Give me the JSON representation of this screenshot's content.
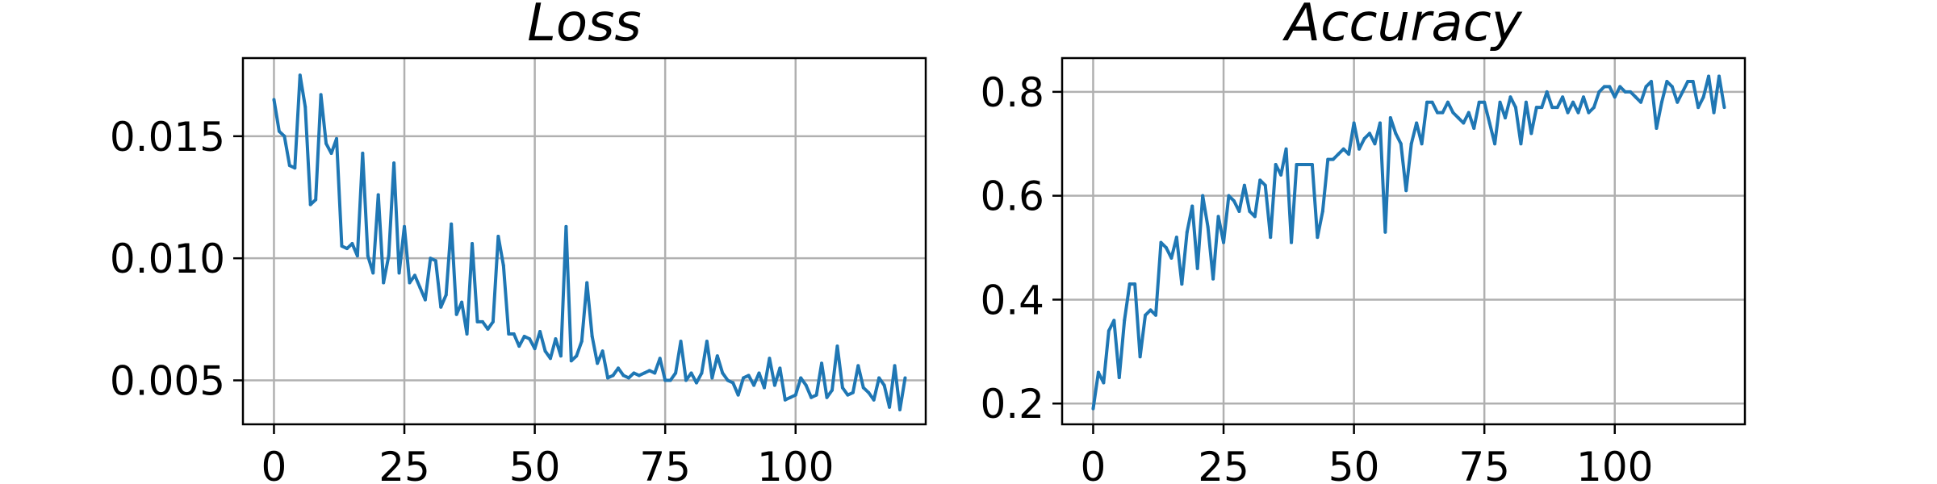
{
  "chart_data": [
    {
      "type": "line",
      "title": "Loss",
      "xlabel": "",
      "ylabel": "",
      "grid": true,
      "color": "#1f77b4",
      "xlim": [
        -5.95,
        124.95
      ],
      "ylim": [
        0.0032,
        0.0182
      ],
      "xticks": [
        0,
        25,
        50,
        75,
        100
      ],
      "yticks": [
        0.005,
        0.01,
        0.015
      ],
      "xtick_labels": [
        "0",
        "25",
        "50",
        "75",
        "100"
      ],
      "ytick_labels": [
        "0.005",
        "0.010",
        "0.015"
      ],
      "x_start": 0,
      "x_step": 1,
      "series": [
        {
          "values": [
            0.0165,
            0.0152,
            0.015,
            0.0138,
            0.0137,
            0.0175,
            0.0162,
            0.0122,
            0.0124,
            0.0167,
            0.0147,
            0.0143,
            0.0149,
            0.0105,
            0.0104,
            0.0106,
            0.0101,
            0.0143,
            0.0101,
            0.0094,
            0.0126,
            0.009,
            0.0101,
            0.0139,
            0.0094,
            0.0113,
            0.009,
            0.0093,
            0.0088,
            0.0083,
            0.01,
            0.0099,
            0.008,
            0.0085,
            0.0114,
            0.0077,
            0.0082,
            0.0069,
            0.0106,
            0.0074,
            0.0074,
            0.0071,
            0.0074,
            0.0109,
            0.0097,
            0.0069,
            0.0069,
            0.0064,
            0.0068,
            0.0067,
            0.0063,
            0.007,
            0.0062,
            0.0059,
            0.0067,
            0.006,
            0.0113,
            0.0058,
            0.006,
            0.0066,
            0.009,
            0.0068,
            0.0057,
            0.0062,
            0.0051,
            0.0052,
            0.0055,
            0.0052,
            0.0051,
            0.0053,
            0.0052,
            0.0053,
            0.0054,
            0.0053,
            0.0059,
            0.005,
            0.005,
            0.0053,
            0.0066,
            0.005,
            0.0053,
            0.0049,
            0.0053,
            0.0066,
            0.0051,
            0.006,
            0.0053,
            0.005,
            0.0049,
            0.0044,
            0.0051,
            0.0052,
            0.0048,
            0.0053,
            0.0047,
            0.0059,
            0.0048,
            0.0055,
            0.0042,
            0.0043,
            0.0044,
            0.0051,
            0.0048,
            0.0043,
            0.0044,
            0.0057,
            0.0043,
            0.0046,
            0.0064,
            0.0047,
            0.0044,
            0.0045,
            0.0056,
            0.0047,
            0.0045,
            0.0042,
            0.0051,
            0.0048,
            0.0039,
            0.0056,
            0.0038,
            0.0051
          ]
        }
      ]
    },
    {
      "type": "line",
      "title": "Accuracy",
      "xlabel": "",
      "ylabel": "",
      "grid": true,
      "color": "#1f77b4",
      "xlim": [
        -5.95,
        124.95
      ],
      "ylim": [
        0.16,
        0.865
      ],
      "xticks": [
        0,
        25,
        50,
        75,
        100
      ],
      "yticks": [
        0.2,
        0.4,
        0.6,
        0.8
      ],
      "xtick_labels": [
        "0",
        "25",
        "50",
        "75",
        "100"
      ],
      "ytick_labels": [
        "0.2",
        "0.4",
        "0.6",
        "0.8"
      ],
      "x_start": 0,
      "x_step": 1,
      "series": [
        {
          "values": [
            0.19,
            0.26,
            0.24,
            0.34,
            0.36,
            0.25,
            0.36,
            0.43,
            0.43,
            0.29,
            0.37,
            0.38,
            0.37,
            0.51,
            0.5,
            0.48,
            0.52,
            0.43,
            0.53,
            0.58,
            0.46,
            0.6,
            0.54,
            0.44,
            0.56,
            0.51,
            0.6,
            0.59,
            0.57,
            0.62,
            0.57,
            0.56,
            0.63,
            0.62,
            0.52,
            0.66,
            0.64,
            0.69,
            0.51,
            0.66,
            0.66,
            0.66,
            0.66,
            0.52,
            0.57,
            0.67,
            0.67,
            0.68,
            0.69,
            0.68,
            0.74,
            0.69,
            0.71,
            0.72,
            0.7,
            0.74,
            0.53,
            0.75,
            0.72,
            0.7,
            0.61,
            0.7,
            0.74,
            0.7,
            0.78,
            0.78,
            0.76,
            0.76,
            0.78,
            0.76,
            0.75,
            0.74,
            0.76,
            0.73,
            0.78,
            0.78,
            0.74,
            0.7,
            0.78,
            0.75,
            0.79,
            0.77,
            0.7,
            0.78,
            0.72,
            0.77,
            0.77,
            0.8,
            0.77,
            0.77,
            0.79,
            0.76,
            0.78,
            0.76,
            0.79,
            0.76,
            0.77,
            0.8,
            0.81,
            0.81,
            0.79,
            0.81,
            0.8,
            0.8,
            0.79,
            0.78,
            0.81,
            0.82,
            0.73,
            0.78,
            0.82,
            0.81,
            0.78,
            0.8,
            0.82,
            0.82,
            0.77,
            0.79,
            0.83,
            0.76,
            0.83,
            0.77
          ]
        }
      ]
    }
  ]
}
